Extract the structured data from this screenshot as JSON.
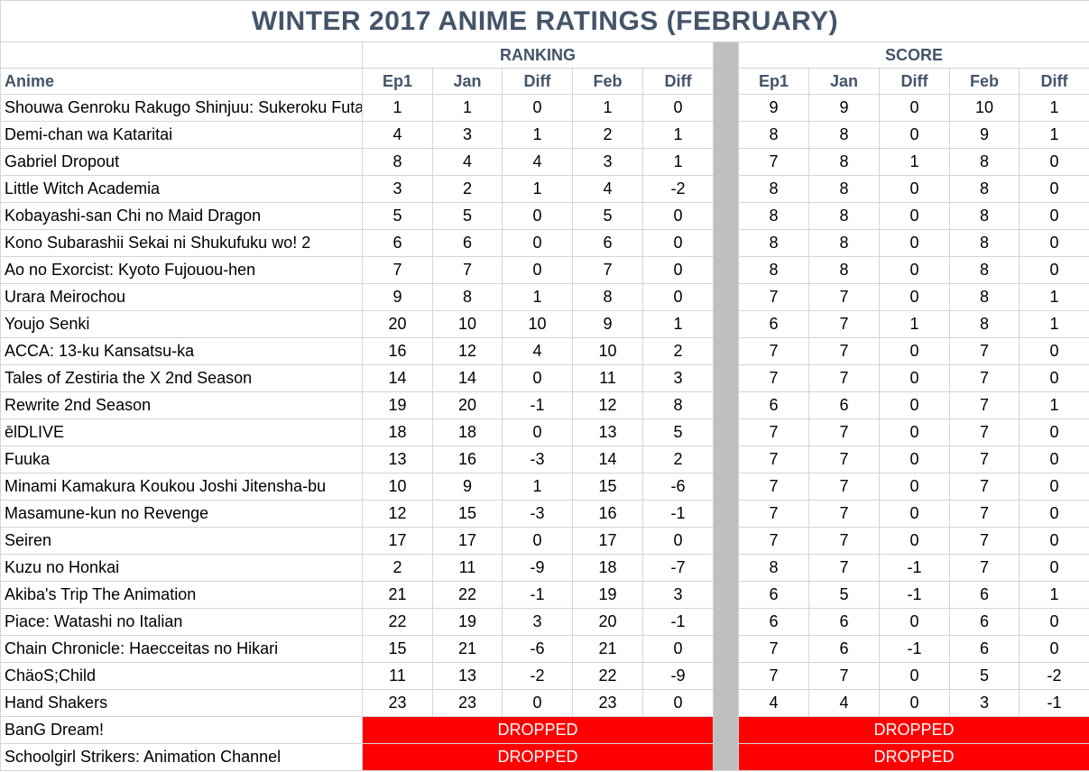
{
  "title": "WINTER 2017 ANIME RATINGS (FEBRUARY)",
  "groups": {
    "ranking": "RANKING",
    "score": "SCORE"
  },
  "columns": {
    "anime": "Anime",
    "ep1": "Ep1",
    "jan": "Jan",
    "diff": "Diff",
    "feb": "Feb"
  },
  "rows": [
    {
      "name": "Shouwa Genroku Rakugo Shinjuu: Sukeroku Futatabi-hen",
      "r": [
        "1",
        "1",
        "0",
        "1",
        "0"
      ],
      "s": [
        "9",
        "9",
        "0",
        "10",
        "1"
      ]
    },
    {
      "name": "Demi-chan wa Kataritai",
      "r": [
        "4",
        "3",
        "1",
        "2",
        "1"
      ],
      "s": [
        "8",
        "8",
        "0",
        "9",
        "1"
      ]
    },
    {
      "name": "Gabriel Dropout",
      "r": [
        "8",
        "4",
        "4",
        "3",
        "1"
      ],
      "s": [
        "7",
        "8",
        "1",
        "8",
        "0"
      ]
    },
    {
      "name": "Little Witch Academia",
      "r": [
        "3",
        "2",
        "1",
        "4",
        "-2"
      ],
      "s": [
        "8",
        "8",
        "0",
        "8",
        "0"
      ]
    },
    {
      "name": "Kobayashi-san Chi no Maid Dragon",
      "r": [
        "5",
        "5",
        "0",
        "5",
        "0"
      ],
      "s": [
        "8",
        "8",
        "0",
        "8",
        "0"
      ]
    },
    {
      "name": "Kono Subarashii Sekai ni Shukufuku wo! 2",
      "r": [
        "6",
        "6",
        "0",
        "6",
        "0"
      ],
      "s": [
        "8",
        "8",
        "0",
        "8",
        "0"
      ]
    },
    {
      "name": "Ao no Exorcist: Kyoto Fujouou-hen",
      "r": [
        "7",
        "7",
        "0",
        "7",
        "0"
      ],
      "s": [
        "8",
        "8",
        "0",
        "8",
        "0"
      ]
    },
    {
      "name": "Urara Meirochou",
      "r": [
        "9",
        "8",
        "1",
        "8",
        "0"
      ],
      "s": [
        "7",
        "7",
        "0",
        "8",
        "1"
      ]
    },
    {
      "name": "Youjo Senki",
      "r": [
        "20",
        "10",
        "10",
        "9",
        "1"
      ],
      "s": [
        "6",
        "7",
        "1",
        "8",
        "1"
      ]
    },
    {
      "name": "ACCA: 13-ku Kansatsu-ka",
      "r": [
        "16",
        "12",
        "4",
        "10",
        "2"
      ],
      "s": [
        "7",
        "7",
        "0",
        "7",
        "0"
      ]
    },
    {
      "name": "Tales of Zestiria the X 2nd Season",
      "r": [
        "14",
        "14",
        "0",
        "11",
        "3"
      ],
      "s": [
        "7",
        "7",
        "0",
        "7",
        "0"
      ]
    },
    {
      "name": "Rewrite 2nd Season",
      "r": [
        "19",
        "20",
        "-1",
        "12",
        "8"
      ],
      "s": [
        "6",
        "6",
        "0",
        "7",
        "1"
      ]
    },
    {
      "name": "ēlDLIVE",
      "r": [
        "18",
        "18",
        "0",
        "13",
        "5"
      ],
      "s": [
        "7",
        "7",
        "0",
        "7",
        "0"
      ]
    },
    {
      "name": "Fuuka",
      "r": [
        "13",
        "16",
        "-3",
        "14",
        "2"
      ],
      "s": [
        "7",
        "7",
        "0",
        "7",
        "0"
      ]
    },
    {
      "name": "Minami Kamakura Koukou Joshi Jitensha-bu",
      "r": [
        "10",
        "9",
        "1",
        "15",
        "-6"
      ],
      "s": [
        "7",
        "7",
        "0",
        "7",
        "0"
      ]
    },
    {
      "name": "Masamune-kun no Revenge",
      "r": [
        "12",
        "15",
        "-3",
        "16",
        "-1"
      ],
      "s": [
        "7",
        "7",
        "0",
        "7",
        "0"
      ]
    },
    {
      "name": "Seiren",
      "r": [
        "17",
        "17",
        "0",
        "17",
        "0"
      ],
      "s": [
        "7",
        "7",
        "0",
        "7",
        "0"
      ]
    },
    {
      "name": "Kuzu no Honkai",
      "r": [
        "2",
        "11",
        "-9",
        "18",
        "-7"
      ],
      "s": [
        "8",
        "7",
        "-1",
        "7",
        "0"
      ]
    },
    {
      "name": "Akiba's Trip The Animation",
      "r": [
        "21",
        "22",
        "-1",
        "19",
        "3"
      ],
      "s": [
        "6",
        "5",
        "-1",
        "6",
        "1"
      ]
    },
    {
      "name": "Piace: Watashi no Italian",
      "r": [
        "22",
        "19",
        "3",
        "20",
        "-1"
      ],
      "s": [
        "6",
        "6",
        "0",
        "6",
        "0"
      ]
    },
    {
      "name": "Chain Chronicle: Haecceitas no Hikari",
      "r": [
        "15",
        "21",
        "-6",
        "21",
        "0"
      ],
      "s": [
        "7",
        "6",
        "-1",
        "6",
        "0"
      ]
    },
    {
      "name": "ChäoS;Child",
      "r": [
        "11",
        "13",
        "-2",
        "22",
        "-9"
      ],
      "s": [
        "7",
        "7",
        "0",
        "5",
        "-2"
      ]
    },
    {
      "name": "Hand Shakers",
      "r": [
        "23",
        "23",
        "0",
        "23",
        "0"
      ],
      "s": [
        "4",
        "4",
        "0",
        "3",
        "-1"
      ]
    }
  ],
  "dropped": [
    {
      "name": "BanG Dream!",
      "label": "DROPPED"
    },
    {
      "name": "Schoolgirl Strikers: Animation Channel",
      "label": "DROPPED"
    }
  ],
  "colors": {
    "positive": "#008000",
    "negative": "#ff0000",
    "zero": "#0000ff",
    "dropped_bg": "#ff0000",
    "header_text": "#44546a",
    "separator": "#bfbfbf"
  }
}
